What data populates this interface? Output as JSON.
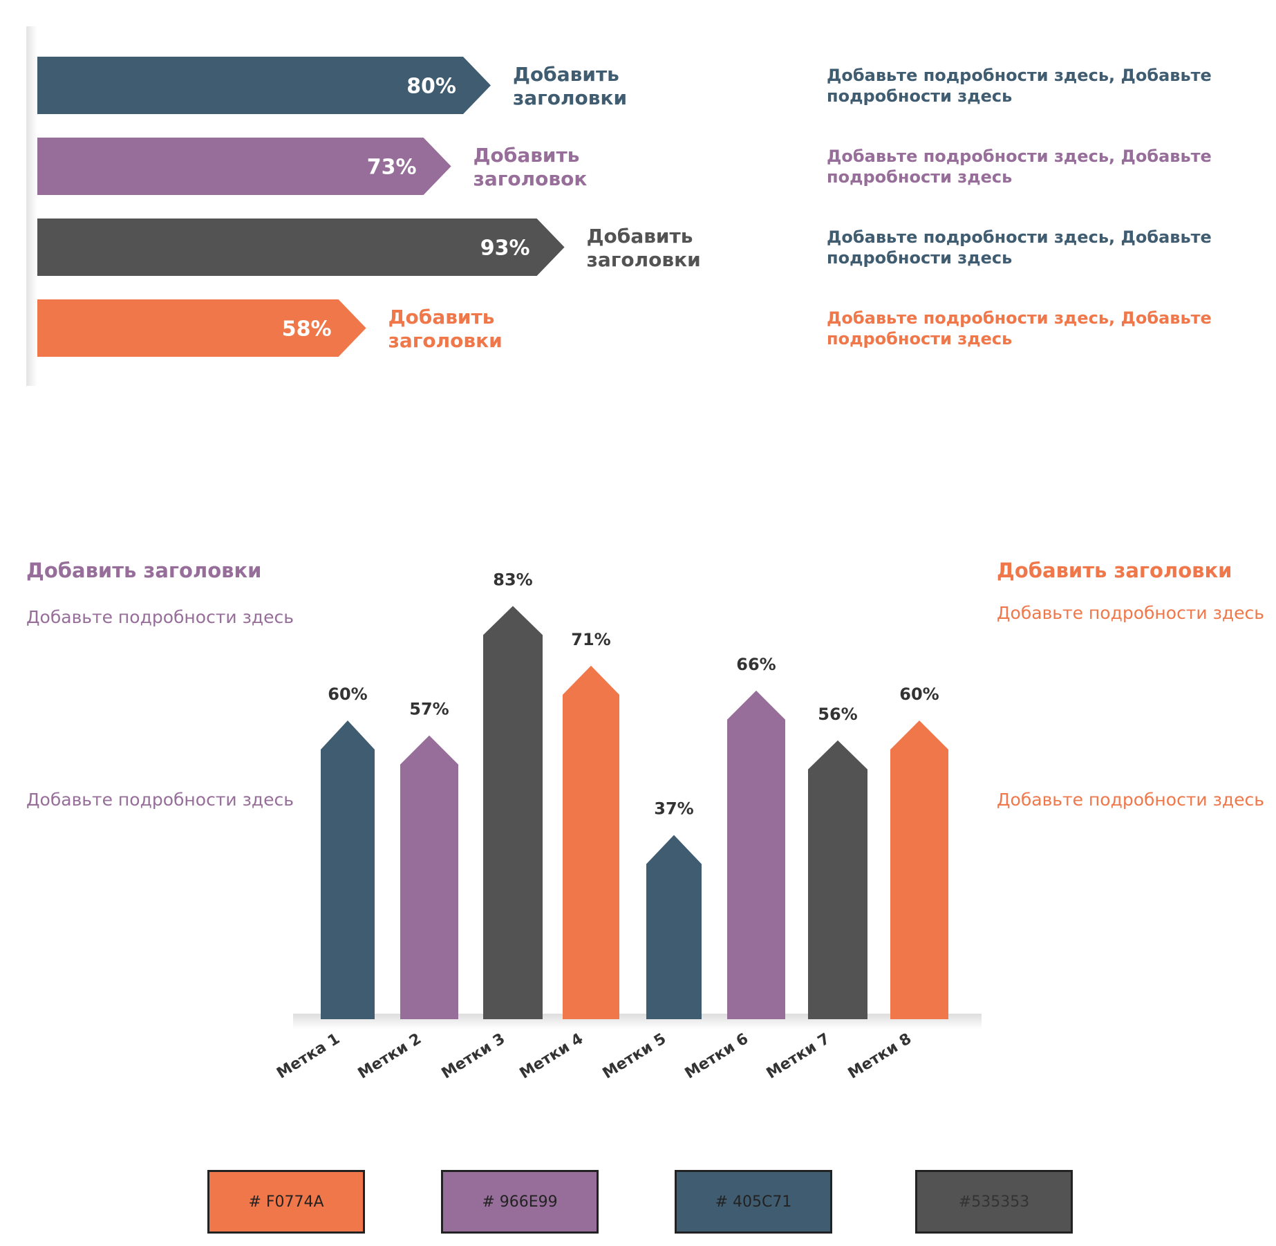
{
  "chart_data": [
    {
      "type": "bar",
      "orientation": "horizontal",
      "categories": [
        "Добавить заголовки",
        "Добавить заголовок",
        "Добавить заголовки",
        "Добавить заголовки"
      ],
      "values": [
        80,
        73,
        93,
        58
      ],
      "value_labels": [
        "80%",
        "73%",
        "93%",
        "58%"
      ],
      "titles": [
        [
          "Добавить",
          "заголовки"
        ],
        [
          "Добавить",
          "заголовок"
        ],
        [
          "Добавить",
          "заголовки"
        ],
        [
          "Добавить",
          "заголовки"
        ]
      ],
      "details": [
        [
          "Добавьте подробности здесь, Добавьте",
          "подробности здесь"
        ],
        [
          "Добавьте подробности здесь, Добавьте",
          "подробности здесь"
        ],
        [
          "Добавьте подробности здесь, Добавьте",
          "подробности здесь"
        ],
        [
          "Добавьте подробности здесь, Добавьте",
          "подробности здесь"
        ]
      ],
      "colors": [
        "#405C71",
        "#966E99",
        "#535353",
        "#F0774A"
      ],
      "detail_colors": [
        "#405C71",
        "#966E99",
        "#405C71",
        "#F0774A"
      ],
      "xlim": [
        0,
        100
      ]
    },
    {
      "type": "bar",
      "orientation": "vertical",
      "categories": [
        "Метка 1",
        "Метки 2",
        "Метки 3",
        "Метки 4",
        "Метки 5",
        "Метки 6",
        "Метки 7",
        "Метки 8"
      ],
      "values": [
        60,
        57,
        83,
        71,
        37,
        66,
        56,
        60
      ],
      "value_labels": [
        "60%",
        "57%",
        "83%",
        "71%",
        "37%",
        "66%",
        "56%",
        "60%"
      ],
      "colors": [
        "#405C71",
        "#966E99",
        "#535353",
        "#F0774A",
        "#405C71",
        "#966E99",
        "#535353",
        "#F0774A"
      ],
      "ylim": [
        0,
        100
      ],
      "grid": false
    }
  ],
  "left_panel": {
    "title": "Добавить заголовки",
    "detail_1": "Добавьте подробности здесь",
    "detail_2": "Добавьте подробности здесь",
    "color": "#966E99"
  },
  "right_panel": {
    "title": "Добавить заголовки",
    "detail_1": "Добавьте подробности здесь",
    "detail_2": "Добавьте подробности здесь",
    "color": "#F0774A"
  },
  "swatches": [
    {
      "label": "# F0774A",
      "color": "#F0774A"
    },
    {
      "label": "# 966E99",
      "color": "#966E99"
    },
    {
      "label": "# 405C71",
      "color": "#405C71"
    },
    {
      "label": "#535353",
      "color": "#535353"
    }
  ]
}
